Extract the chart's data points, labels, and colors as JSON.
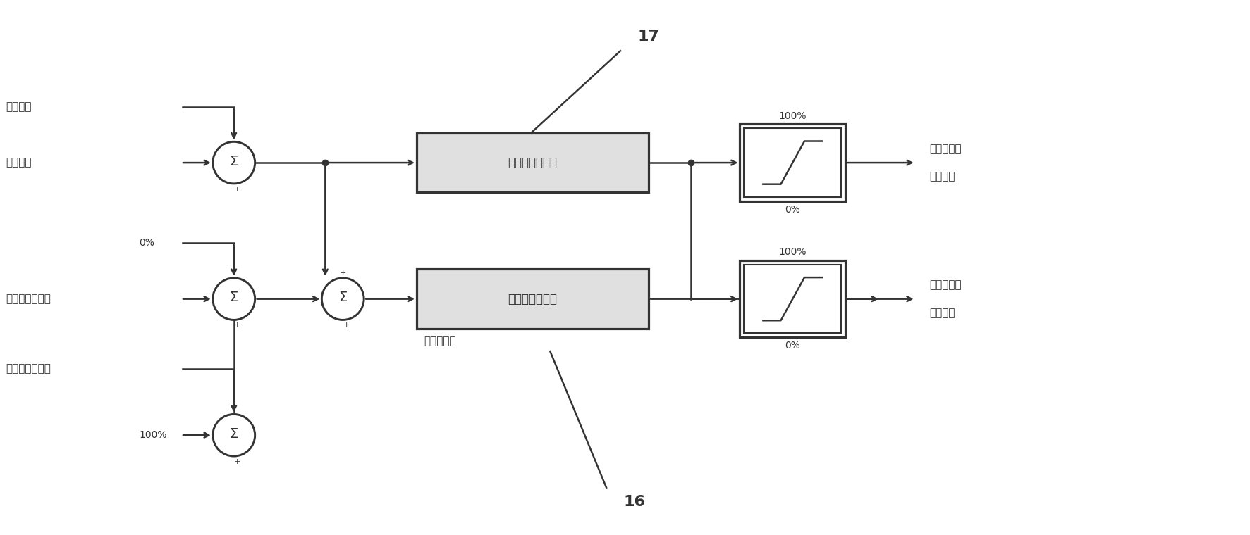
{
  "bg_color": "#ffffff",
  "line_color": "#333333",
  "text_color": "#333333",
  "labels": {
    "fa_dian": "发电功率",
    "gong_lv": "功率需求",
    "zero_pct": "0%",
    "pang_tong": "旁通调节阀开度",
    "gao_ya": "高压调节阀开度",
    "hundred_pct": "100%",
    "controller2": "第二无差控制器",
    "controller1": "第一无差控制器",
    "out_top_100": "100%",
    "out_top_0": "0%",
    "out_bot_100": "100%",
    "out_bot_0": "0%",
    "label_17": "17",
    "label_16": "16",
    "out_right1_line1": "高压调节阀",
    "out_right1_line2": "开度指令",
    "out_right2_line1": "旁通调节阀",
    "out_right2_line2": "开度指令",
    "fuel_cmd": "燃料量指令"
  },
  "layout": {
    "fig_w": 17.74,
    "fig_h": 7.6,
    "xlim": [
      0,
      17.74
    ],
    "ylim": [
      0,
      7.6
    ]
  }
}
